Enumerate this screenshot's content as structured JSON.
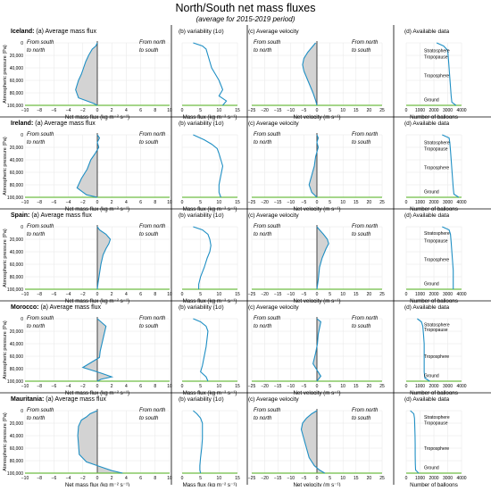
{
  "title": "North/South net mass fluxes",
  "subtitle": "(average for 2015-2019 period)",
  "colors": {
    "line": "#1f8fc4",
    "fill": "#d3d3d3",
    "ground": "#6fbe44",
    "zero": "#333333",
    "grid": "#e6e6e6"
  },
  "y_axis": {
    "label": "Atmospheric pressure (Pa)",
    "ticks": [
      "0",
      "20,000",
      "40,000",
      "60,000",
      "80,000",
      "100,000"
    ]
  },
  "columns": [
    {
      "key": "a",
      "title": "(a) Average mass flux",
      "xlabel": "Net mass flux (kg m⁻² s⁻¹)",
      "xticks": [
        "−10",
        "−8",
        "−6",
        "−4",
        "−2",
        "0",
        "2",
        "4",
        "6",
        "8",
        "10"
      ],
      "left_note": "From south\nto north",
      "right_note": "From north\nto south"
    },
    {
      "key": "b",
      "title": "(b) variability (1σ)",
      "xlabel": "Mass flux (kg m⁻² s⁻¹)",
      "xticks": [
        "0",
        "5",
        "10",
        "15"
      ]
    },
    {
      "key": "c",
      "title": "(c) Average velocity",
      "xlabel": "Net velocity (m s⁻¹)",
      "xticks": [
        "−25",
        "−20",
        "−15",
        "−10",
        "−5",
        "0",
        "5",
        "10",
        "15",
        "20",
        "25"
      ],
      "left_note": "From south\nto north",
      "right_note": "From north\nto south"
    },
    {
      "key": "d",
      "title": "(d) Available data",
      "xlabel": "Number of balloons",
      "xticks": [
        "0",
        "1000",
        "2000",
        "3000",
        "4000"
      ],
      "layer_labels": [
        "Stratosphere",
        "Tropopause",
        "Troposphere",
        "Ground"
      ]
    }
  ],
  "chart_data": [
    {
      "type": "line",
      "region": "Iceland",
      "panel": "a",
      "title": "(a) Average mass flux",
      "xlabel": "Net mass flux (kg m⁻² s⁻¹)",
      "ylabel": "Atmospheric pressure (Pa)",
      "xlim": [
        -10,
        10
      ],
      "ylim": [
        100000,
        0
      ],
      "fill_to_zero": true,
      "x": [
        0,
        -0.2,
        -0.7,
        -1.2,
        -1.6,
        -1.9,
        -2.2,
        -2.6,
        -3.0,
        -2.6,
        -0.5,
        0
      ],
      "y": [
        0,
        5000,
        10000,
        20000,
        30000,
        40000,
        50000,
        60000,
        75000,
        88000,
        97000,
        100000
      ]
    },
    {
      "type": "line",
      "region": "Iceland",
      "panel": "b",
      "title": "(b) variability (1σ)",
      "xlabel": "Mass flux (kg m⁻² s⁻¹)",
      "xlim": [
        0,
        15
      ],
      "ylim": [
        100000,
        0
      ],
      "x": [
        3.0,
        5.5,
        6.5,
        7.0,
        7.5,
        8.0,
        9.0,
        10.0,
        11.0,
        10.0,
        12.0,
        11.0
      ],
      "y": [
        0,
        5000,
        10000,
        20000,
        30000,
        40000,
        50000,
        60000,
        75000,
        85000,
        93000,
        100000
      ]
    },
    {
      "type": "line",
      "region": "Iceland",
      "panel": "c",
      "title": "(c) Average velocity",
      "xlabel": "Net velocity (m s⁻¹)",
      "xlim": [
        -25,
        25
      ],
      "ylim": [
        100000,
        0
      ],
      "fill_to_zero": true,
      "x": [
        -0.5,
        -1.5,
        -3.5,
        -5.0,
        -5.5,
        -5.0,
        -4.0,
        -3.0,
        -1.5,
        -0.5,
        0
      ],
      "y": [
        0,
        5000,
        15000,
        25000,
        35000,
        45000,
        55000,
        65000,
        80000,
        92000,
        100000
      ]
    },
    {
      "type": "line",
      "region": "Iceland",
      "panel": "d",
      "title": "(d) Available data",
      "xlabel": "Number of balloons",
      "xlim": [
        0,
        4000
      ],
      "ylim": [
        100000,
        0
      ],
      "x": [
        2200,
        2700,
        3000,
        3050,
        3100,
        3150,
        3200,
        3250,
        3300,
        3600
      ],
      "y": [
        0,
        5000,
        12000,
        25000,
        40000,
        55000,
        70000,
        85000,
        95000,
        100000
      ]
    },
    {
      "type": "line",
      "region": "Ireland",
      "panel": "a",
      "title": "(a) Average mass flux",
      "xlabel": "Net mass flux (kg m⁻² s⁻¹)",
      "ylabel": "Atmospheric pressure (Pa)",
      "xlim": [
        -10,
        10
      ],
      "ylim": [
        100000,
        0
      ],
      "fill_to_zero": true,
      "x": [
        0,
        0.3,
        0,
        0.2,
        -0.3,
        -0.9,
        -1.4,
        -2.2,
        -2.8,
        -1.5,
        0
      ],
      "y": [
        0,
        5000,
        12000,
        20000,
        30000,
        40000,
        55000,
        70000,
        85000,
        96000,
        100000
      ]
    },
    {
      "type": "line",
      "region": "Ireland",
      "panel": "b",
      "title": "(b) variability (1σ)",
      "xlabel": "Mass flux (kg m⁻² s⁻¹)",
      "xlim": [
        0,
        15
      ],
      "ylim": [
        100000,
        0
      ],
      "x": [
        3.0,
        6.0,
        8.0,
        9.5,
        10.0,
        10.5,
        11.0,
        10.5,
        10.0,
        10.0,
        10.5
      ],
      "y": [
        0,
        8000,
        15000,
        22000,
        30000,
        40000,
        50000,
        65000,
        80000,
        92000,
        100000
      ]
    },
    {
      "type": "line",
      "region": "Ireland",
      "panel": "c",
      "title": "(c) Average velocity",
      "xlabel": "Net velocity (m s⁻¹)",
      "xlim": [
        -25,
        25
      ],
      "ylim": [
        100000,
        0
      ],
      "fill_to_zero": true,
      "x": [
        0,
        0.5,
        0,
        0.5,
        -0.5,
        -1.0,
        -2.0,
        -3.0,
        -2.0,
        0
      ],
      "y": [
        0,
        5000,
        12000,
        20000,
        35000,
        50000,
        65000,
        80000,
        92000,
        100000
      ]
    },
    {
      "type": "line",
      "region": "Ireland",
      "panel": "d",
      "title": "(d) Available data",
      "xlabel": "Number of balloons",
      "xlim": [
        0,
        4000
      ],
      "ylim": [
        100000,
        0
      ],
      "x": [
        2600,
        3100,
        3150,
        3200,
        3250,
        3300,
        3350,
        3400,
        3450,
        3800
      ],
      "y": [
        0,
        5000,
        12000,
        25000,
        40000,
        55000,
        70000,
        85000,
        95000,
        100000
      ]
    },
    {
      "type": "line",
      "region": "Spain",
      "panel": "a",
      "title": "(a) Average mass flux",
      "xlabel": "Net mass flux (kg m⁻² s⁻¹)",
      "ylabel": "Atmospheric pressure (Pa)",
      "xlim": [
        -10,
        10
      ],
      "ylim": [
        100000,
        0
      ],
      "fill_to_zero": true,
      "x": [
        0,
        0.3,
        1.2,
        1.8,
        1.6,
        1.2,
        0.8,
        0.5,
        0.3,
        0.1,
        0
      ],
      "y": [
        0,
        5000,
        12000,
        20000,
        27000,
        35000,
        45000,
        60000,
        75000,
        90000,
        100000
      ]
    },
    {
      "type": "line",
      "region": "Spain",
      "panel": "b",
      "title": "(b) variability (1σ)",
      "xlabel": "Mass flux (kg m⁻² s⁻¹)",
      "xlim": [
        0,
        15
      ],
      "ylim": [
        100000,
        0
      ],
      "x": [
        3.0,
        5.5,
        7.0,
        7.5,
        7.8,
        7.5,
        6.8,
        6.0,
        5.0,
        4.5,
        4.5
      ],
      "y": [
        0,
        5000,
        12000,
        20000,
        30000,
        40000,
        50000,
        65000,
        80000,
        92000,
        100000
      ]
    },
    {
      "type": "line",
      "region": "Spain",
      "panel": "c",
      "title": "(c) Average velocity",
      "xlabel": "Net velocity (m s⁻¹)",
      "xlim": [
        -25,
        25
      ],
      "ylim": [
        100000,
        0
      ],
      "fill_to_zero": true,
      "x": [
        0,
        1.0,
        2.5,
        4.0,
        4.5,
        3.5,
        2.0,
        1.0,
        0.5,
        0
      ],
      "y": [
        0,
        5000,
        12000,
        20000,
        27000,
        35000,
        50000,
        65000,
        85000,
        100000
      ]
    },
    {
      "type": "line",
      "region": "Spain",
      "panel": "d",
      "title": "(d) Available data",
      "xlabel": "Number of balloons",
      "xlim": [
        0,
        4000
      ],
      "ylim": [
        100000,
        0
      ],
      "x": [
        2600,
        3100,
        3200,
        3250,
        3300,
        3350,
        3400,
        3400,
        3400,
        3400
      ],
      "y": [
        0,
        5000,
        12000,
        25000,
        40000,
        55000,
        70000,
        85000,
        95000,
        100000
      ]
    },
    {
      "type": "line",
      "region": "Morocco",
      "panel": "a",
      "title": "(a) Average mass flux",
      "xlabel": "Net mass flux (kg m⁻² s⁻¹)",
      "ylabel": "Atmospheric pressure (Pa)",
      "xlim": [
        -10,
        10
      ],
      "ylim": [
        100000,
        0
      ],
      "fill_to_zero": true,
      "x": [
        0,
        0.5,
        1.2,
        1.0,
        0.8,
        0.6,
        0.4,
        0.3,
        -2.0,
        0.5,
        2.0,
        0.5,
        0
      ],
      "y": [
        0,
        5000,
        12000,
        22000,
        32000,
        42000,
        52000,
        62000,
        78000,
        87000,
        93000,
        97000,
        100000
      ]
    },
    {
      "type": "line",
      "region": "Morocco",
      "panel": "b",
      "title": "(b) variability (1σ)",
      "xlabel": "Mass flux (kg m⁻² s⁻¹)",
      "xlim": [
        0,
        15
      ],
      "ylim": [
        100000,
        0
      ],
      "x": [
        3.0,
        5.0,
        6.5,
        7.0,
        6.8,
        6.5,
        6.0,
        5.5,
        5.0,
        6.5,
        7.0
      ],
      "y": [
        0,
        5000,
        12000,
        20000,
        30000,
        45000,
        60000,
        75000,
        85000,
        93000,
        100000
      ]
    },
    {
      "type": "line",
      "region": "Morocco",
      "panel": "c",
      "title": "(c) Average velocity",
      "xlabel": "Net velocity (m s⁻¹)",
      "xlim": [
        -25,
        25
      ],
      "ylim": [
        100000,
        0
      ],
      "fill_to_zero": true,
      "x": [
        0,
        1.5,
        1.0,
        0.5,
        0.2,
        -0.5,
        -1.5,
        0,
        1.5,
        0
      ],
      "y": [
        0,
        5000,
        15000,
        25000,
        40000,
        55000,
        72000,
        82000,
        92000,
        100000
      ]
    },
    {
      "type": "line",
      "region": "Morocco",
      "panel": "d",
      "title": "(d) Available data",
      "xlabel": "Number of balloons",
      "xlim": [
        0,
        4000
      ],
      "ylim": [
        100000,
        0
      ],
      "x": [
        800,
        1100,
        1200,
        1250,
        1300,
        1300,
        1300,
        1300,
        1350,
        1700
      ],
      "y": [
        0,
        5000,
        12000,
        25000,
        40000,
        55000,
        70000,
        85000,
        95000,
        100000
      ]
    },
    {
      "type": "line",
      "region": "Mauritania",
      "panel": "a",
      "title": "(a) Average mass flux",
      "xlabel": "Net mass flux (kg m⁻² s⁻¹)",
      "ylabel": "Atmospheric pressure (Pa)",
      "xlim": [
        -10,
        10
      ],
      "ylim": [
        100000,
        0
      ],
      "fill_to_zero": true,
      "x": [
        0,
        -1.0,
        -1.5,
        -2.2,
        -2.6,
        -2.7,
        -2.6,
        -2.5,
        -1.5,
        0.5,
        2.0,
        3.5
      ],
      "y": [
        0,
        5000,
        10000,
        15000,
        25000,
        40000,
        55000,
        70000,
        82000,
        90000,
        96000,
        100000
      ]
    },
    {
      "type": "line",
      "region": "Mauritania",
      "panel": "b",
      "title": "(b) variability (1σ)",
      "xlabel": "Mass flux (kg m⁻² s⁻¹)",
      "xlim": [
        0,
        15
      ],
      "ylim": [
        100000,
        0
      ],
      "x": [
        3.0,
        4.0,
        5.0,
        5.5,
        5.5,
        5.5,
        5.3,
        5.0,
        4.8,
        4.8,
        5.0
      ],
      "y": [
        0,
        5000,
        12000,
        20000,
        30000,
        45000,
        60000,
        75000,
        88000,
        95000,
        100000
      ]
    },
    {
      "type": "line",
      "region": "Mauritania",
      "panel": "c",
      "title": "(c) Average velocity",
      "xlabel": "Net velocity (m s⁻¹)",
      "xlim": [
        -25,
        25
      ],
      "ylim": [
        100000,
        0
      ],
      "fill_to_zero": true,
      "x": [
        0,
        -2.0,
        -4.0,
        -5.5,
        -6.0,
        -5.0,
        -4.0,
        -3.0,
        -1.0,
        1.0,
        3.0
      ],
      "y": [
        0,
        5000,
        12000,
        20000,
        30000,
        45000,
        60000,
        75000,
        88000,
        95000,
        100000
      ]
    },
    {
      "type": "line",
      "region": "Mauritania",
      "panel": "d",
      "title": "(d) Available data",
      "xlabel": "Number of balloons",
      "xlim": [
        0,
        4000
      ],
      "ylim": [
        100000,
        0
      ],
      "x": [
        300,
        550,
        600,
        620,
        640,
        650,
        650,
        660,
        680,
        900
      ],
      "y": [
        0,
        5000,
        12000,
        25000,
        40000,
        55000,
        70000,
        85000,
        95000,
        100000
      ]
    }
  ],
  "d_label_positions": {
    "Iceland": {
      "Stratosphere": 12000,
      "Tropopause": 22000,
      "Troposphere": 52000,
      "Ground": 91000
    },
    "Ireland": {
      "Stratosphere": 12000,
      "Tropopause": 22000,
      "Troposphere": 52000,
      "Ground": 91000
    },
    "Spain": {
      "Stratosphere": 10000,
      "Tropopause": 22000,
      "Troposphere": 52000,
      "Ground": 91000
    },
    "Morocco": {
      "Stratosphere": 9000,
      "Tropopause": 17000,
      "Troposphere": 60000,
      "Ground": 91000
    },
    "Mauritania": {
      "Stratosphere": 10000,
      "Tropopause": 19000,
      "Troposphere": 60000,
      "Ground": 91000
    }
  }
}
